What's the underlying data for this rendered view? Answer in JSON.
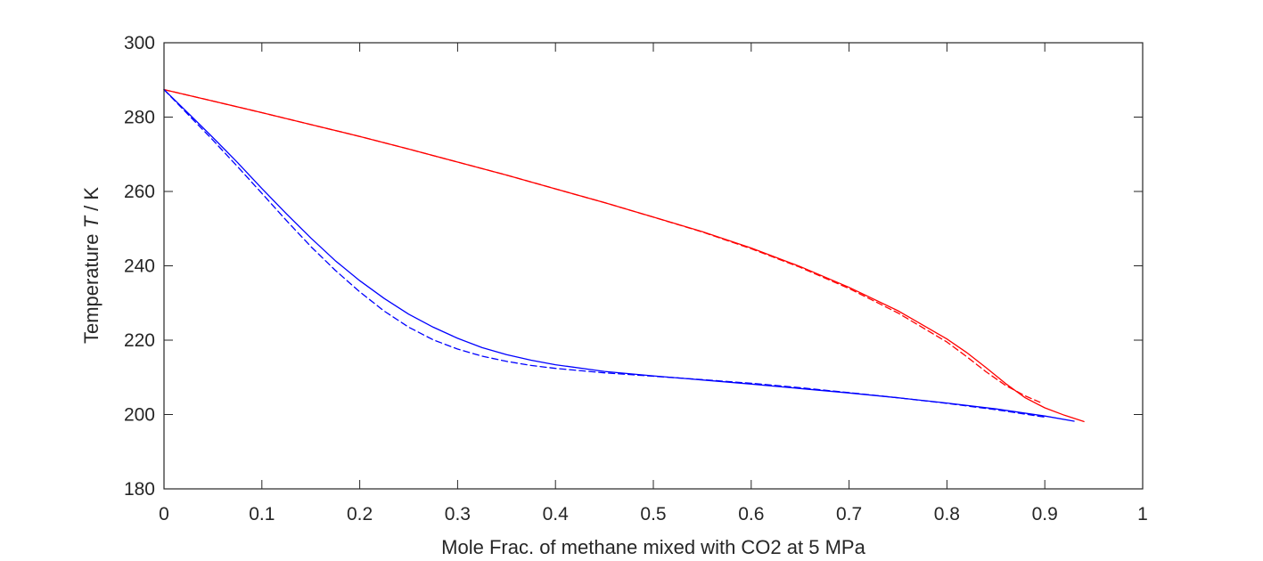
{
  "chart_data": {
    "type": "line",
    "xlabel": "Mole Frac. of methane mixed with CO2 at 5 MPa",
    "ylabel_prefix": "Temperature ",
    "ylabel_italic": "T",
    "ylabel_suffix": " / K",
    "xlim": [
      0,
      1
    ],
    "ylim": [
      180,
      300
    ],
    "x_ticks": [
      0,
      0.1,
      0.2,
      0.3,
      0.4,
      0.5,
      0.6,
      0.7,
      0.8,
      0.9,
      1
    ],
    "x_tick_labels": [
      "0",
      "0.1",
      "0.2",
      "0.3",
      "0.4",
      "0.5",
      "0.6",
      "0.7",
      "0.8",
      "0.9",
      "1"
    ],
    "y_ticks": [
      180,
      200,
      220,
      240,
      260,
      280,
      300
    ],
    "y_tick_labels": [
      "180",
      "200",
      "220",
      "240",
      "260",
      "280",
      "300"
    ],
    "grid": false,
    "legend": false,
    "series": [
      {
        "color": "#ff0000",
        "style": "solid",
        "x": [
          0,
          0.05,
          0.1,
          0.15,
          0.2,
          0.25,
          0.3,
          0.35,
          0.4,
          0.45,
          0.5,
          0.55,
          0.6,
          0.65,
          0.7,
          0.75,
          0.8,
          0.82,
          0.84,
          0.86,
          0.88,
          0.9,
          0.92,
          0.94
        ],
        "y": [
          287.4,
          284.3,
          281.2,
          278.0,
          274.8,
          271.4,
          267.9,
          264.4,
          260.7,
          257.0,
          253.1,
          249.2,
          244.8,
          239.8,
          234.2,
          227.9,
          220.3,
          216.7,
          212.6,
          208.3,
          204.5,
          201.8,
          199.8,
          198.1
        ]
      },
      {
        "color": "#ff0000",
        "style": "dashed",
        "x": [
          0,
          0.05,
          0.1,
          0.15,
          0.2,
          0.25,
          0.3,
          0.35,
          0.4,
          0.45,
          0.5,
          0.55,
          0.6,
          0.65,
          0.7,
          0.75,
          0.8,
          0.82,
          0.84,
          0.86,
          0.88,
          0.895
        ],
        "y": [
          287.4,
          284.3,
          281.2,
          278.0,
          274.8,
          271.4,
          267.9,
          264.4,
          260.7,
          257.0,
          253.1,
          249.1,
          244.6,
          239.6,
          233.9,
          227.3,
          219.5,
          215.6,
          211.5,
          207.8,
          205.0,
          203.3
        ]
      },
      {
        "color": "#0000ff",
        "style": "solid",
        "x": [
          0,
          0.025,
          0.05,
          0.075,
          0.1,
          0.125,
          0.15,
          0.175,
          0.2,
          0.225,
          0.25,
          0.275,
          0.3,
          0.325,
          0.35,
          0.375,
          0.4,
          0.45,
          0.5,
          0.55,
          0.6,
          0.65,
          0.7,
          0.75,
          0.8,
          0.85,
          0.9,
          0.93
        ],
        "y": [
          287.4,
          281.0,
          274.5,
          267.8,
          260.8,
          254.0,
          247.5,
          241.4,
          236.0,
          231.2,
          227.0,
          223.5,
          220.5,
          218.0,
          216.1,
          214.6,
          213.4,
          211.6,
          210.4,
          209.3,
          208.2,
          207.0,
          205.8,
          204.5,
          203.1,
          201.5,
          199.6,
          198.2
        ]
      },
      {
        "color": "#0000ff",
        "style": "dashed",
        "x": [
          0,
          0.025,
          0.05,
          0.075,
          0.1,
          0.125,
          0.15,
          0.175,
          0.2,
          0.225,
          0.25,
          0.275,
          0.3,
          0.325,
          0.35,
          0.375,
          0.4,
          0.45,
          0.5,
          0.55,
          0.6,
          0.65,
          0.7,
          0.75,
          0.8,
          0.85,
          0.9
        ],
        "y": [
          287.4,
          280.6,
          273.8,
          266.7,
          259.5,
          252.2,
          245.2,
          238.8,
          233.0,
          227.8,
          223.5,
          220.1,
          217.6,
          215.7,
          214.3,
          213.2,
          212.4,
          211.2,
          210.3,
          209.4,
          208.4,
          207.2,
          205.9,
          204.5,
          203.0,
          201.3,
          199.3
        ]
      }
    ]
  }
}
